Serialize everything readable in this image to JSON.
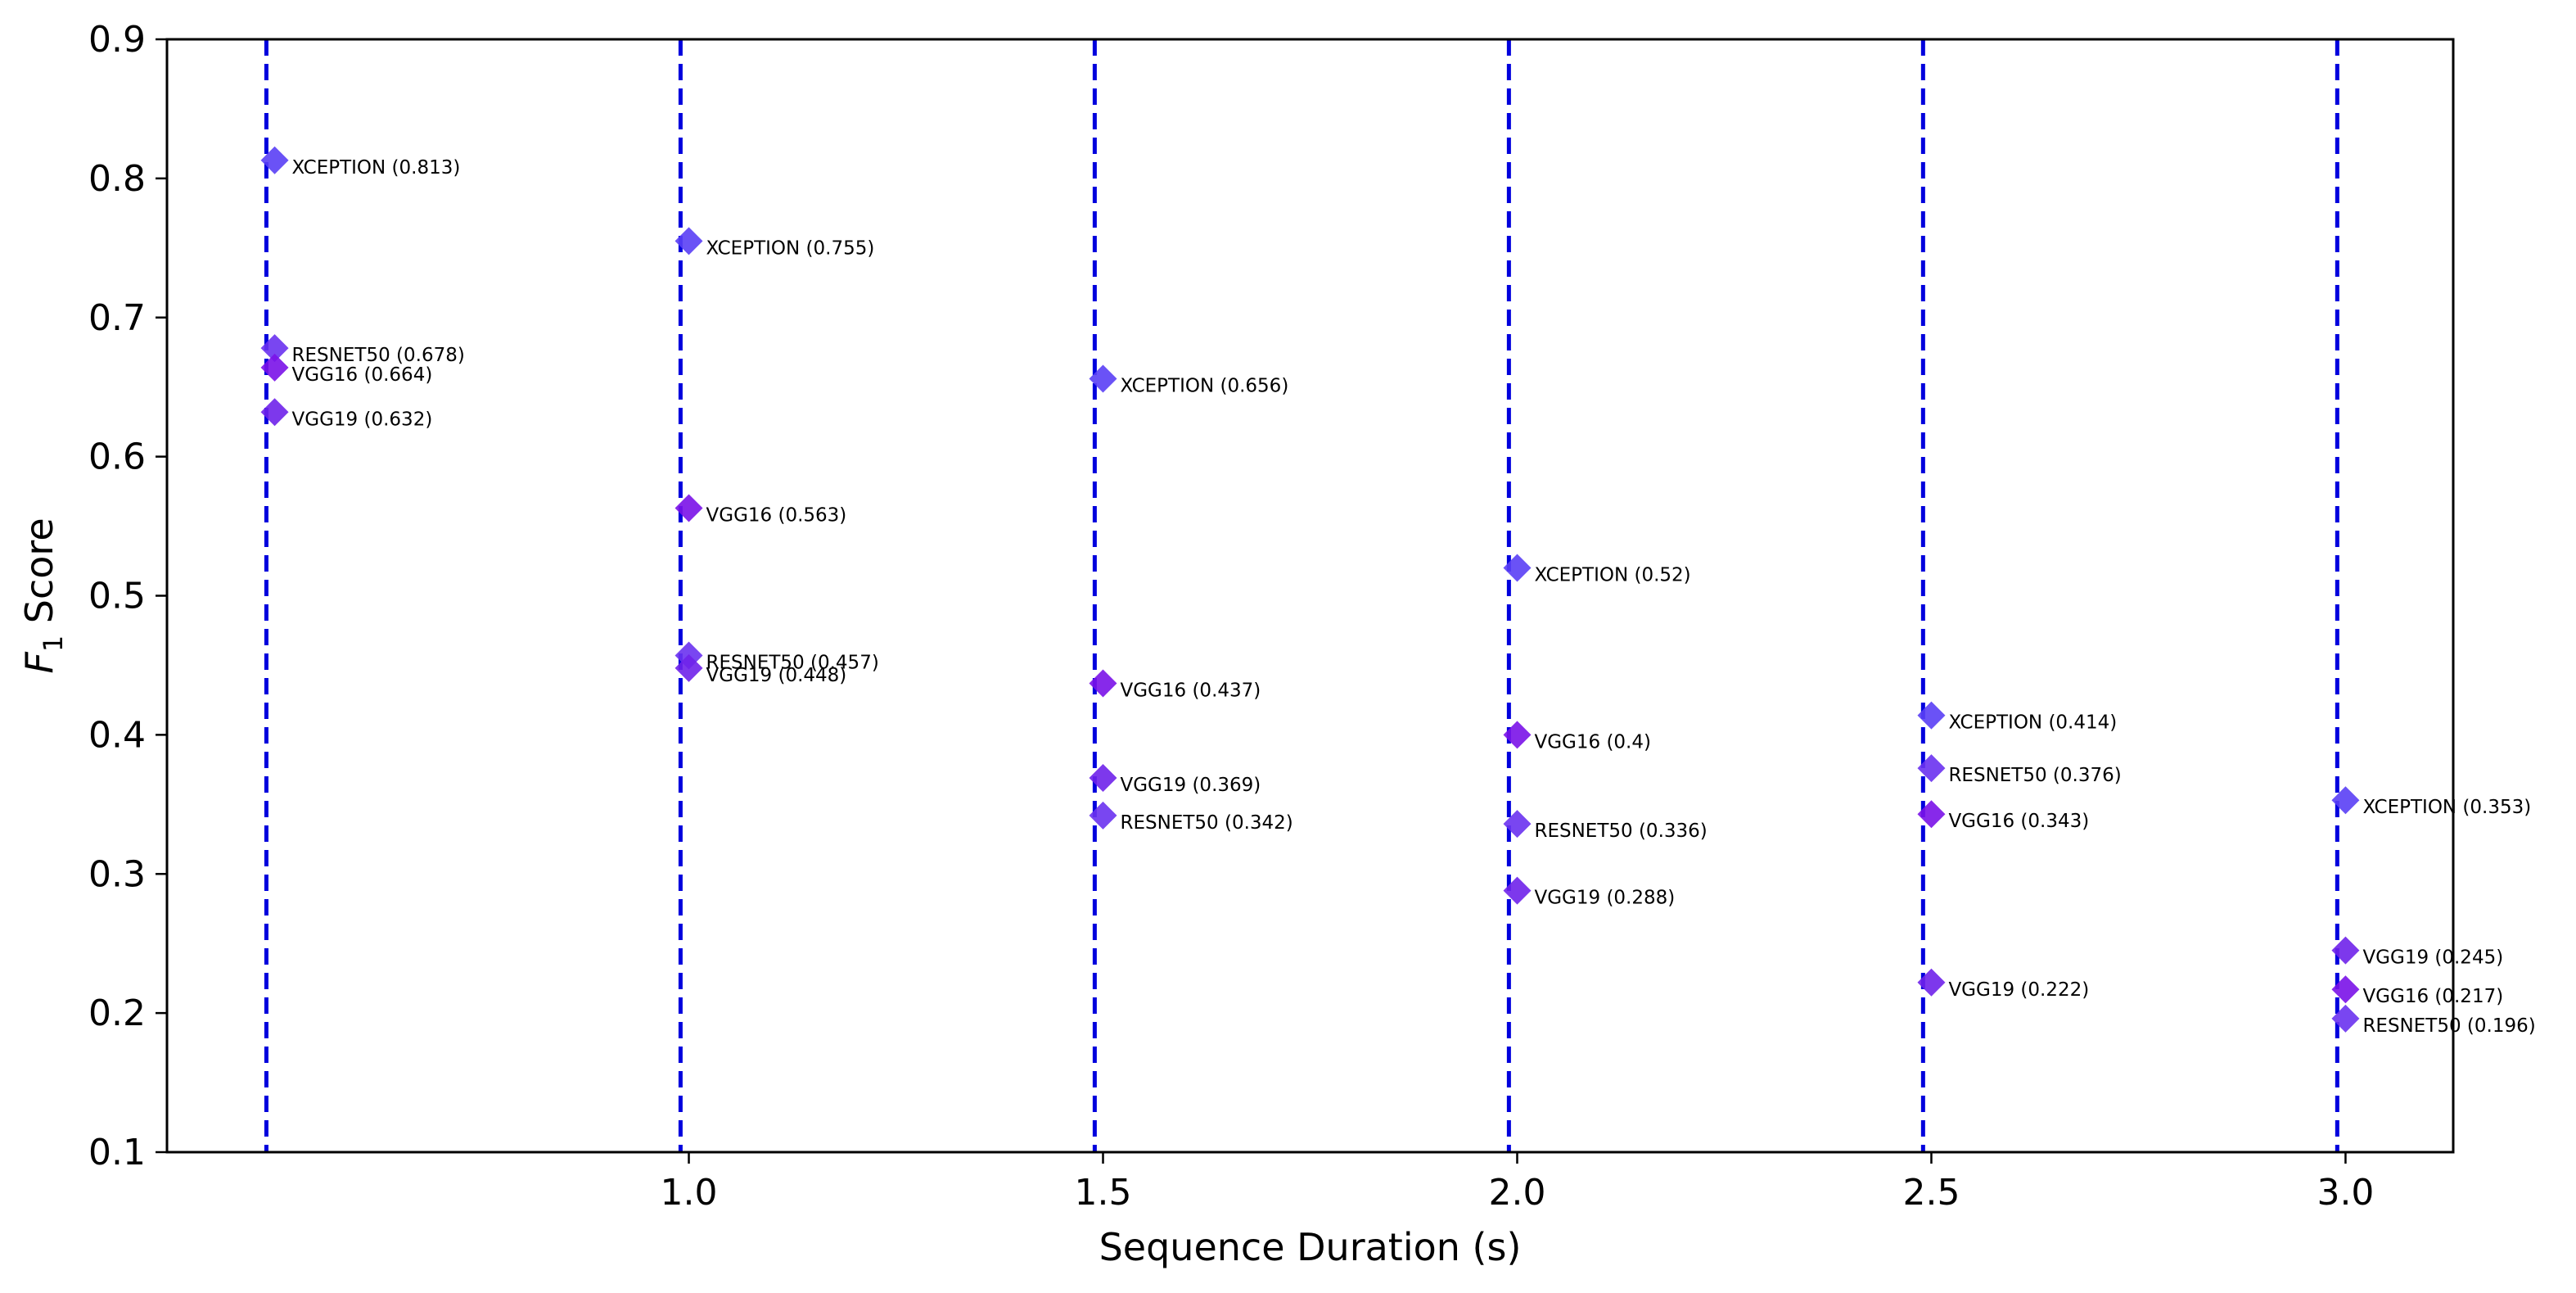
{
  "chart_data": {
    "type": "scatter",
    "title": "",
    "xlabel": "Sequence Duration (s)",
    "ylabel": {
      "main": "F",
      "sub": "1",
      "rest": " Score"
    },
    "xlim": [
      0.37,
      3.13
    ],
    "ylim": [
      0.1,
      0.9
    ],
    "xticks": [
      "1.0",
      "1.5",
      "2.0",
      "2.5",
      "3.0"
    ],
    "yticks": [
      "0.1",
      "0.2",
      "0.3",
      "0.4",
      "0.5",
      "0.6",
      "0.7",
      "0.8",
      "0.9"
    ],
    "grid": false,
    "legend": "none",
    "vlines": [
      0.49,
      0.99,
      1.49,
      1.99,
      2.49,
      2.99
    ],
    "vline_color": "#0000dd",
    "marker": "diamond",
    "points": [
      {
        "x": 0.5,
        "y": 0.813,
        "label": "XCEPTION (0.813)",
        "color": "#5a3ff5"
      },
      {
        "x": 0.5,
        "y": 0.678,
        "label": "RESNET50 (0.678)",
        "color": "#6a32f0"
      },
      {
        "x": 0.5,
        "y": 0.664,
        "label": "VGG16 (0.664)",
        "color": "#7a12e8"
      },
      {
        "x": 0.5,
        "y": 0.632,
        "label": "VGG19 (0.632)",
        "color": "#6f22ea"
      },
      {
        "x": 1.0,
        "y": 0.755,
        "label": "XCEPTION (0.755)",
        "color": "#5a3ff5"
      },
      {
        "x": 1.0,
        "y": 0.563,
        "label": "VGG16 (0.563)",
        "color": "#7a12e8"
      },
      {
        "x": 1.0,
        "y": 0.457,
        "label": "RESNET50 (0.457)",
        "color": "#6a32f0"
      },
      {
        "x": 1.0,
        "y": 0.448,
        "label": "VGG19 (0.448)",
        "color": "#6f22ea"
      },
      {
        "x": 1.5,
        "y": 0.656,
        "label": "XCEPTION (0.656)",
        "color": "#5a3ff5"
      },
      {
        "x": 1.5,
        "y": 0.437,
        "label": "VGG16 (0.437)",
        "color": "#7a12e8"
      },
      {
        "x": 1.5,
        "y": 0.369,
        "label": "VGG19 (0.369)",
        "color": "#6f22ea"
      },
      {
        "x": 1.5,
        "y": 0.342,
        "label": "RESNET50 (0.342)",
        "color": "#6a32f0"
      },
      {
        "x": 2.0,
        "y": 0.52,
        "label": "XCEPTION (0.52)",
        "color": "#5a3ff5"
      },
      {
        "x": 2.0,
        "y": 0.4,
        "label": "VGG16 (0.4)",
        "color": "#7a12e8"
      },
      {
        "x": 2.0,
        "y": 0.336,
        "label": "RESNET50 (0.336)",
        "color": "#6a32f0"
      },
      {
        "x": 2.0,
        "y": 0.288,
        "label": "VGG19 (0.288)",
        "color": "#6f22ea"
      },
      {
        "x": 2.5,
        "y": 0.414,
        "label": "XCEPTION (0.414)",
        "color": "#5a3ff5"
      },
      {
        "x": 2.5,
        "y": 0.376,
        "label": "RESNET50 (0.376)",
        "color": "#6a32f0"
      },
      {
        "x": 2.5,
        "y": 0.343,
        "label": "VGG16 (0.343)",
        "color": "#7a12e8"
      },
      {
        "x": 2.5,
        "y": 0.222,
        "label": "VGG19 (0.222)",
        "color": "#6f22ea"
      },
      {
        "x": 3.0,
        "y": 0.353,
        "label": "XCEPTION (0.353)",
        "color": "#5a3ff5"
      },
      {
        "x": 3.0,
        "y": 0.245,
        "label": "VGG19 (0.245)",
        "color": "#6f22ea"
      },
      {
        "x": 3.0,
        "y": 0.217,
        "label": "VGG16 (0.217)",
        "color": "#7a12e8"
      },
      {
        "x": 3.0,
        "y": 0.196,
        "label": "RESNET50 (0.196)",
        "color": "#6a32f0"
      }
    ]
  }
}
